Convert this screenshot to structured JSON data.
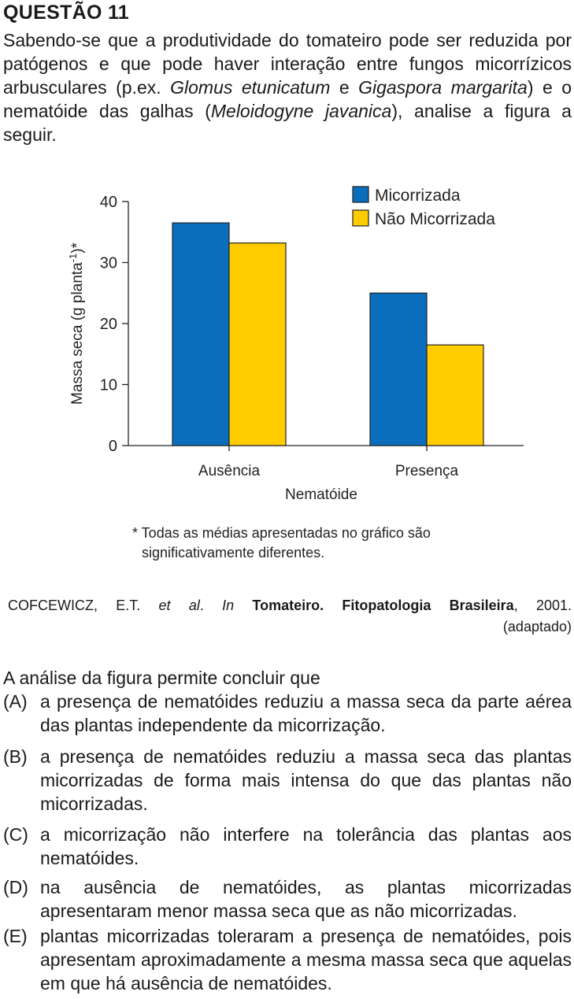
{
  "question": {
    "title": "QUESTÃO 11",
    "intro": {
      "p1": "Sabendo-se que a produtividade do tomateiro pode ser reduzida por patógenos e que pode haver interação entre fungos micorrízicos arbusculares (p.ex. ",
      "sp1": "Glomus etunicatum",
      "p2": " e ",
      "sp2": "Gigaspora margarita",
      "p3": ") e o nematóide das galhas (",
      "sp3": "Meloidogyne javanica",
      "p4": "), analise a figura a seguir."
    }
  },
  "chart_data": {
    "type": "bar",
    "categories": [
      "Ausência",
      "Presença"
    ],
    "series": [
      {
        "name": "Micorrizada",
        "color": "#0a6ebd",
        "values": [
          36.5,
          25
        ]
      },
      {
        "name": "Não Micorrizada",
        "color": "#ffcc00",
        "values": [
          33.2,
          16.5
        ]
      }
    ],
    "xlabel": "Nematóide",
    "ylabel": "Massa seca (g planta-1)*",
    "ylim": [
      0,
      40
    ],
    "yticks": [
      "0",
      "10",
      "20",
      "30",
      "40"
    ],
    "legend_position": "top-right",
    "grid": false,
    "footnote_line1": "* Todas as médias apresentadas no gráfico são",
    "footnote_line2": "significativamente diferentes."
  },
  "source": {
    "author": "COFCEWICZ, E.T. ",
    "etal": "et al",
    "dot": ". ",
    "in": "In",
    "space": " ",
    "work": "Tomateiro. Fitopatologia Brasileira",
    "year": ", 2001.",
    "note": "(adaptado)"
  },
  "stem": "A análise da figura permite concluir que",
  "options": [
    {
      "letter": "(A)",
      "text": "a presença de nematóides reduziu a massa seca da parte aérea das plantas independente da micorrização."
    },
    {
      "letter": "(B)",
      "text": "a presença de nematóides reduziu a massa seca das plantas micorrizadas de forma mais intensa do que das plantas não micorrizadas."
    },
    {
      "letter": "(C)",
      "text": "a micorrização não interfere na tolerância das plantas aos nematóides."
    },
    {
      "letter": "(D)",
      "text": "na ausência de nematóides, as plantas micorrizadas apresentaram menor massa seca que as não micorrizadas."
    },
    {
      "letter": "(E)",
      "text": "plantas micorrizadas toleraram a presença de nematóides, pois apresentam aproximadamente a mesma massa seca que aquelas em que há ausência de nematóides."
    }
  ]
}
